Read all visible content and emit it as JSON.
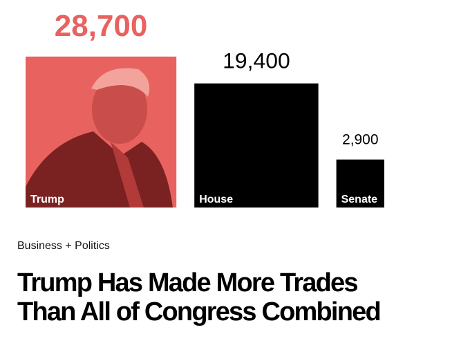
{
  "chart_data": {
    "type": "square",
    "categories": [
      "Trump",
      "House",
      "Senate"
    ],
    "values": [
      28700,
      19400,
      2900
    ],
    "value_labels": [
      "28,700",
      "19,400",
      "2,900"
    ],
    "colors": [
      "#e8625f",
      "#000000",
      "#000000"
    ]
  },
  "kicker": "Business + Politics",
  "headline": [
    "Trump Has Made More Trades",
    "Than All of Congress Combined"
  ]
}
